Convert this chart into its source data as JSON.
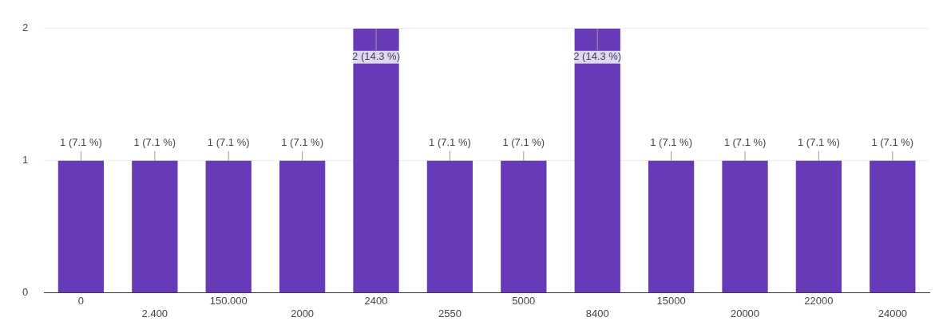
{
  "chart_data": {
    "type": "bar",
    "categories": [
      "0",
      "2.400",
      "150.000",
      "2000",
      "2400",
      "2550",
      "5000",
      "8400",
      "15000",
      "20000",
      "22000",
      "24000"
    ],
    "values": [
      1,
      1,
      1,
      1,
      2,
      1,
      1,
      2,
      1,
      1,
      1,
      1
    ],
    "value_labels": [
      "1 (7.1 %)",
      "1 (7.1 %)",
      "1 (7.1 %)",
      "1 (7.1 %)",
      "2 (14.3 %)",
      "1 (7.1 %)",
      "1 (7.1 %)",
      "2 (14.3 %)",
      "1 (7.1 %)",
      "1 (7.1 %)",
      "1 (7.1 %)",
      "1 (7.1 %)"
    ],
    "color": "#673ab7",
    "ylim": [
      0,
      2
    ],
    "yticks": [
      0,
      1,
      2
    ],
    "grid": "y",
    "legend": false
  }
}
